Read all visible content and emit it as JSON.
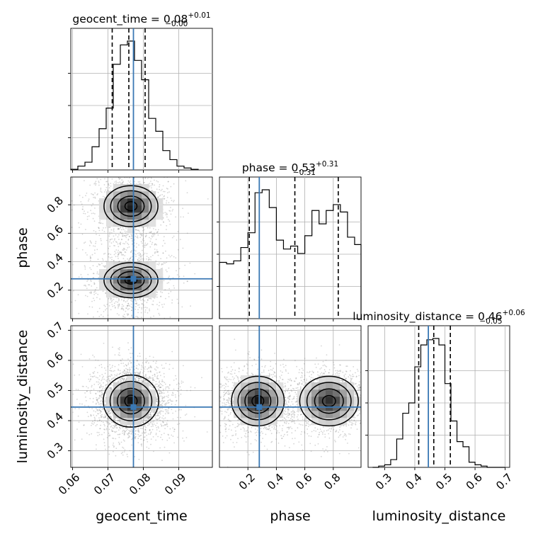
{
  "chart_data": {
    "type": "corner",
    "parameters": [
      "geocent_time",
      "phase",
      "luminosity_distance"
    ],
    "grid": true,
    "injection_color": "#3a78b4",
    "titles": [
      {
        "param": "geocent_time",
        "prefix": "geocent_time = 0.08",
        "plus": "+0.01",
        "minus": "−0.00"
      },
      {
        "param": "phase",
        "prefix": "phase = 0.53",
        "plus": "+0.31",
        "minus": "−0.31"
      },
      {
        "param": "luminosity_distance",
        "prefix": "luminosity_distance = 0.46",
        "plus": "+0.06",
        "minus": "−0.05"
      }
    ],
    "axes": {
      "geocent_time": {
        "label": "geocent_time",
        "range": [
          0.0595,
          0.0995
        ],
        "ticks": [
          0.06,
          0.07,
          0.08,
          0.09
        ],
        "tick_labels": [
          "0.06",
          "0.07",
          "0.08",
          "0.09"
        ],
        "injection": 0.0772,
        "quantiles": [
          0.0712,
          0.0759,
          0.0805
        ]
      },
      "phase": {
        "label": "phase",
        "range": [
          0.0,
          0.995
        ],
        "ticks": [
          0.2,
          0.4,
          0.6,
          0.8
        ],
        "tick_labels": [
          "0.2",
          "0.4",
          "0.6",
          "0.8"
        ],
        "injection": 0.28,
        "quantiles": [
          0.21,
          0.53,
          0.835
        ]
      },
      "luminosity_distance": {
        "label": "luminosity_distance",
        "range": [
          0.245,
          0.715
        ],
        "ticks": [
          0.3,
          0.4,
          0.5,
          0.6,
          0.7
        ],
        "tick_labels": [
          "0.3",
          "0.4",
          "0.5",
          "0.6",
          "0.7"
        ],
        "injection": 0.445,
        "quantiles": [
          0.413,
          0.463,
          0.518
        ]
      }
    },
    "histograms": {
      "geocent_time": {
        "bin_edges": [
          0.0595,
          0.0615,
          0.0635,
          0.0655,
          0.0675,
          0.0695,
          0.0715,
          0.0735,
          0.0755,
          0.0775,
          0.0795,
          0.0815,
          0.0835,
          0.0855,
          0.0875,
          0.0895,
          0.0915,
          0.0935,
          0.0955
        ],
        "counts": [
          0.005,
          0.03,
          0.06,
          0.18,
          0.32,
          0.48,
          0.82,
          0.97,
          1.0,
          0.85,
          0.7,
          0.4,
          0.3,
          0.15,
          0.08,
          0.03,
          0.015,
          0.005
        ]
      },
      "phase": {
        "bin_edges": [
          0.0,
          0.05,
          0.1,
          0.15,
          0.2,
          0.25,
          0.3,
          0.35,
          0.4,
          0.45,
          0.5,
          0.55,
          0.6,
          0.65,
          0.7,
          0.75,
          0.8,
          0.85,
          0.9,
          0.95,
          0.995
        ],
        "counts": [
          0.38,
          0.37,
          0.39,
          0.48,
          0.58,
          0.85,
          0.87,
          0.75,
          0.53,
          0.47,
          0.49,
          0.44,
          0.56,
          0.73,
          0.64,
          0.73,
          0.77,
          0.72,
          0.55,
          0.5
        ]
      },
      "luminosity_distance": {
        "bin_edges": [
          0.26,
          0.28,
          0.3,
          0.32,
          0.34,
          0.36,
          0.38,
          0.4,
          0.42,
          0.44,
          0.46,
          0.48,
          0.5,
          0.52,
          0.54,
          0.56,
          0.58,
          0.6,
          0.62,
          0.64,
          0.66,
          0.68,
          0.7
        ],
        "counts": [
          0.0,
          0.01,
          0.02,
          0.06,
          0.22,
          0.42,
          0.5,
          0.78,
          0.95,
          0.99,
          1.0,
          0.95,
          0.65,
          0.36,
          0.2,
          0.16,
          0.04,
          0.02,
          0.01,
          0.0,
          0.0,
          0.0
        ]
      }
    },
    "density_2d": [
      {
        "x": "geocent_time",
        "y": "phase",
        "modes": [
          {
            "x": 0.0765,
            "y": 0.79,
            "sx": 0.0037,
            "sy": 0.07,
            "w": 1.0
          },
          {
            "x": 0.0765,
            "y": 0.27,
            "sx": 0.0037,
            "sy": 0.06,
            "w": 1.0
          }
        ],
        "bounded_y": true
      },
      {
        "x": "geocent_time",
        "y": "luminosity_distance",
        "modes": [
          {
            "x": 0.0765,
            "y": 0.465,
            "sx": 0.0038,
            "sy": 0.042,
            "w": 1.0
          }
        ]
      },
      {
        "x": "phase",
        "y": "luminosity_distance",
        "modes": [
          {
            "x": 0.27,
            "y": 0.465,
            "sx": 0.09,
            "sy": 0.04,
            "w": 1.0
          },
          {
            "x": 0.77,
            "y": 0.465,
            "sx": 0.1,
            "sy": 0.04,
            "w": 0.9
          }
        ],
        "bounded_x": true
      }
    ]
  }
}
